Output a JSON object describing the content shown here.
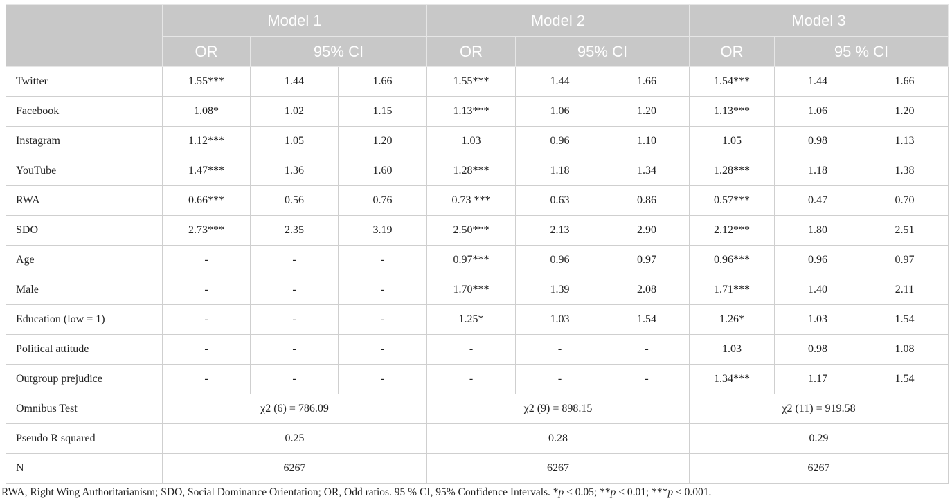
{
  "header": {
    "models": [
      "Model 1",
      "Model 2",
      "Model 3"
    ],
    "subheaders": [
      "OR",
      "95% CI",
      "OR",
      "95% CI",
      "OR",
      "95 % CI"
    ]
  },
  "table": {
    "rows": [
      [
        "Twitter",
        "1.55***",
        "1.44",
        "1.66",
        "1.55***",
        "1.44",
        "1.66",
        "1.54***",
        "1.44",
        "1.66"
      ],
      [
        "Facebook",
        "1.08*",
        "1.02",
        "1.15",
        "1.13***",
        "1.06",
        "1.20",
        "1.13***",
        "1.06",
        "1.20"
      ],
      [
        "Instagram",
        "1.12***",
        "1.05",
        "1.20",
        "1.03",
        "0.96",
        "1.10",
        "1.05",
        "0.98",
        "1.13"
      ],
      [
        "YouTube",
        "1.47***",
        "1.36",
        "1.60",
        "1.28***",
        "1.18",
        "1.34",
        "1.28***",
        "1.18",
        "1.38"
      ],
      [
        "RWA",
        "0.66***",
        "0.56",
        "0.76",
        "0.73 ***",
        "0.63",
        "0.86",
        "0.57***",
        "0.47",
        "0.70"
      ],
      [
        "SDO",
        "2.73***",
        "2.35",
        "3.19",
        "2.50***",
        "2.13",
        "2.90",
        "2.12***",
        "1.80",
        "2.51"
      ],
      [
        "Age",
        "-",
        "-",
        "-",
        "0.97***",
        "0.96",
        "0.97",
        "0.96***",
        "0.96",
        "0.97"
      ],
      [
        "Male",
        "-",
        "-",
        "-",
        "1.70***",
        "1.39",
        "2.08",
        "1.71***",
        "1.40",
        "2.11"
      ],
      [
        "Education (low = 1)",
        "-",
        "-",
        "-",
        "1.25*",
        "1.03",
        "1.54",
        "1.26*",
        "1.03",
        "1.54"
      ],
      [
        "Political attitude",
        "-",
        "-",
        "-",
        "-",
        "-",
        "-",
        "1.03",
        "0.98",
        "1.08"
      ],
      [
        "Outgroup prejudice",
        "-",
        "-",
        "-",
        "-",
        "-",
        "-",
        "1.34***",
        "1.17",
        "1.54"
      ],
      [
        "Omnibus Test",
        "χ2 (6) = 786.09",
        "χ2 (9) =  898.15",
        "χ2 (11) = 919.58"
      ],
      [
        "Pseudo R squared",
        "0.25",
        "0.28",
        "0.29"
      ],
      [
        "N",
        "6267",
        "6267",
        "6267"
      ]
    ]
  },
  "footnote": [
    {
      "text": "RWA, Right Wing Authoritarianism; SDO, Social Dominance Orientation; OR, Odd ratios. 95 % CI, 95% Confidence Intervals. *"
    },
    {
      "text": "p",
      "italic": true
    },
    {
      "text": " < 0.05; **"
    },
    {
      "text": "p",
      "italic": true
    },
    {
      "text": " < 0.01; ***"
    },
    {
      "text": "p",
      "italic": true
    },
    {
      "text": " < 0.001."
    }
  ]
}
